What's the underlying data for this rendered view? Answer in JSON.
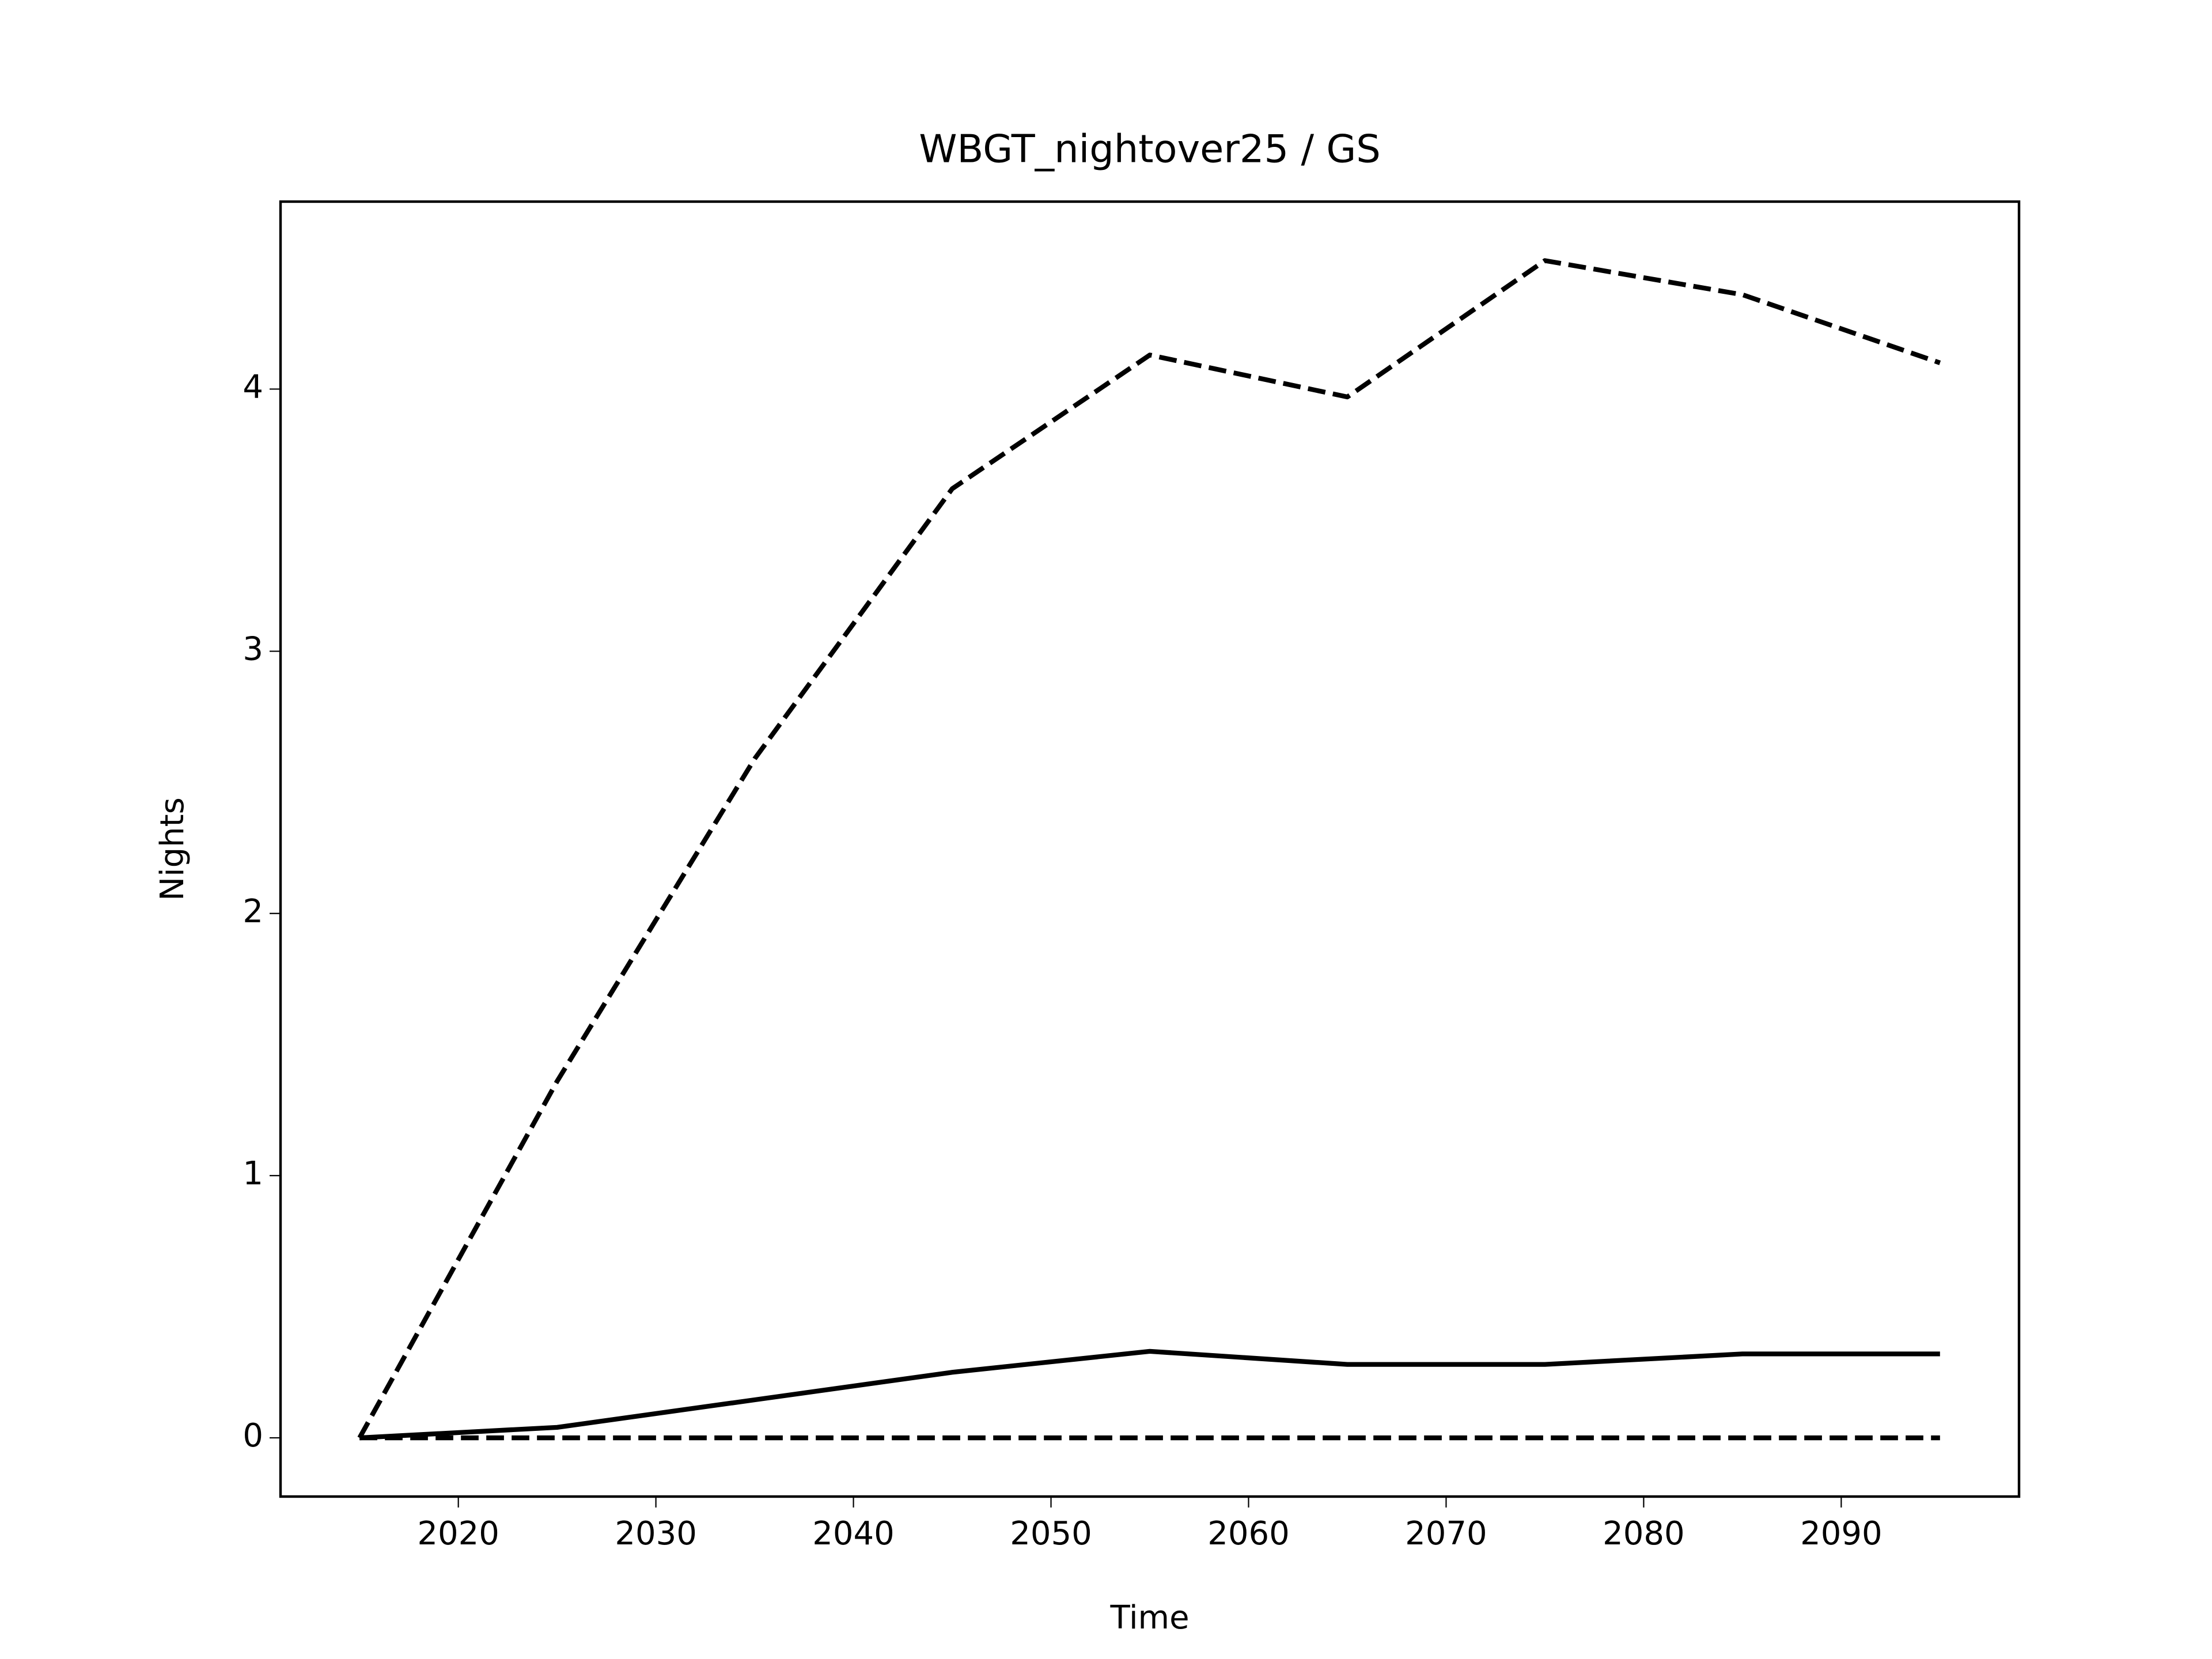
{
  "chart_data": {
    "type": "line",
    "title": "WBGT_nightover25 / GS",
    "xlabel": "Time",
    "ylabel": "Nights",
    "x": [
      2015,
      2025,
      2035,
      2045,
      2055,
      2065,
      2075,
      2085,
      2095
    ],
    "series": [
      {
        "color": "#000000",
        "dash": true,
        "values": [
          0,
          1.36,
          2.59,
          3.62,
          4.13,
          3.97,
          4.49,
          4.36,
          4.1
        ]
      },
      {
        "color": "#000000",
        "dash": false,
        "values": [
          0,
          0.04,
          0.145,
          0.25,
          0.33,
          0.28,
          0.28,
          0.32,
          0.32
        ]
      },
      {
        "color": "#000000",
        "dash": true,
        "values": [
          0,
          0,
          0,
          0,
          0,
          0,
          0,
          0,
          0
        ]
      }
    ],
    "xlim": [
      2011,
      2099
    ],
    "ylim": [
      -0.224,
      4.715
    ],
    "xticks": [
      2020,
      2030,
      2040,
      2050,
      2060,
      2070,
      2080,
      2090
    ],
    "yticks": [
      0,
      1,
      2,
      3,
      4
    ],
    "grid": false
  }
}
